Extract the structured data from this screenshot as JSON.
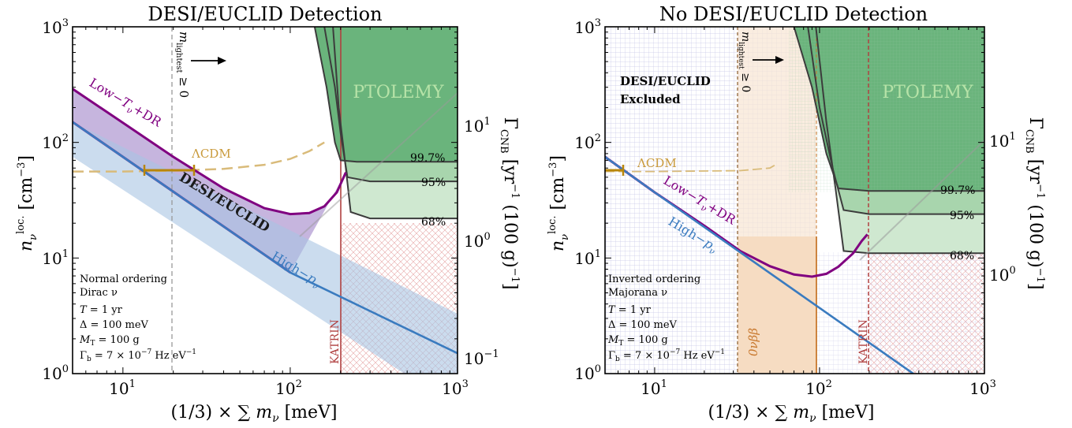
{
  "chart_data": [
    {
      "type": "line",
      "title": "DESI/EUCLID Detection",
      "xlabel": "(1/3) × ∑ m_ν [meV]",
      "ylabel": "n_ν^loc. [cm^-3]",
      "ylabel_right": "Γ_CNB [yr^-1 (100 g)^-1]",
      "xscale": "log",
      "yscale": "log",
      "xlim": [
        5,
        1000
      ],
      "ylim": [
        1,
        1000
      ],
      "x_ticks": [
        "10^1",
        "10^2",
        "10^3"
      ],
      "y_ticks": [
        "10^0",
        "10^1",
        "10^2",
        "10^3"
      ],
      "right_ticks": [
        "10^-1",
        "10^0",
        "10^1"
      ],
      "vertical_lines": [
        {
          "x": 19.5,
          "label": "m_lightest ≥ 0"
        },
        {
          "x": 200,
          "label": "KATRIN"
        }
      ],
      "contour_labels": [
        "99.7%",
        "95%",
        "68%"
      ],
      "annotations": [
        "PTOLEMY",
        "ΛCDM",
        "DESI/EUCLID",
        "Low−T_ν+DR",
        "High−p_ν"
      ],
      "info": [
        "Normal ordering",
        "Dirac ν",
        "T = 1 yr",
        "Δ = 100 meV",
        "M_T = 100 g",
        "Γ_b = 7 × 10^-7 Hz eV^-1"
      ],
      "series": [
        {
          "name": "Low−T_ν+DR",
          "color": "#800080",
          "x": [
            5,
            10,
            20,
            40,
            70,
            100,
            130,
            160,
            190,
            215
          ],
          "y": [
            290,
            148,
            75,
            40,
            27,
            24,
            24.5,
            28,
            37,
            55
          ]
        },
        {
          "name": "High−p_ν",
          "color": "#3a7bbf",
          "x": [
            5,
            10,
            100,
            1000
          ],
          "y": [
            150,
            75,
            7.5,
            1.5
          ]
        },
        {
          "name": "ΛCDM",
          "color": "#d4b16a",
          "x": [
            5,
            10,
            20,
            40,
            70,
            100,
            130,
            160
          ],
          "y": [
            56,
            56,
            57,
            59,
            64,
            72,
            84,
            100
          ]
        },
        {
          "name": "Band lower",
          "color": "#800080",
          "x": [
            5,
            10,
            100
          ],
          "y": [
            150,
            75,
            7.5
          ]
        }
      ],
      "contours": [
        {
          "name": "99.7%",
          "x": [
            140,
            165,
            185,
            200,
            250,
            400,
            700,
            1000
          ],
          "y": [
            1000,
            300,
            100,
            70,
            68,
            68,
            68,
            68
          ]
        },
        {
          "name": "95%",
          "x": [
            160,
            185,
            200,
            220,
            300,
            500,
            1000
          ],
          "y": [
            1000,
            300,
            120,
            50,
            46,
            46,
            46
          ]
        },
        {
          "name": "68%",
          "x": [
            180,
            195,
            210,
            230,
            300,
            500,
            1000
          ],
          "y": [
            1000,
            200,
            80,
            25,
            22,
            22,
            22
          ]
        }
      ],
      "error_bar": {
        "x": [
          13.5,
          26
        ],
        "y": 57
      }
    },
    {
      "type": "line",
      "title": "No DESI/EUCLID Detection",
      "xlabel": "(1/3) × ∑ m_ν [meV]",
      "ylabel": "n_ν^loc. [cm^-3]",
      "ylabel_right": "Γ_CNB [yr^-1 (100 g)^-1]",
      "xscale": "log",
      "yscale": "log",
      "xlim": [
        5,
        1000
      ],
      "ylim": [
        1,
        1000
      ],
      "x_ticks": [
        "10^1",
        "10^2",
        "10^3"
      ],
      "y_ticks": [
        "10^0",
        "10^1",
        "10^2",
        "10^3"
      ],
      "right_ticks": [
        "10^0",
        "10^1"
      ],
      "vertical_lines": [
        {
          "x": 33,
          "label": "m_lightest ≥ 0"
        },
        {
          "x": 130,
          "label": "0νββ"
        },
        {
          "x": 200,
          "label": "KATRIN"
        }
      ],
      "contour_labels": [
        "99.7%",
        "95%",
        "68%"
      ],
      "annotations": [
        "PTOLEMY",
        "ΛCDM",
        "DESI/EUCLID",
        "Excluded",
        "Low−T_ν+DR",
        "High−p_ν"
      ],
      "info": [
        "Inverted ordering",
        "Majorana ν",
        "T = 1 yr",
        "Δ = 100 meV",
        "M_T = 100 g",
        "Γ_b = 7 × 10^-7 Hz eV^-1"
      ],
      "series": [
        {
          "name": "Low−T_ν+DR",
          "color": "#800080",
          "x": [
            5,
            10,
            20,
            33,
            50,
            70,
            90,
            110,
            130,
            160,
            180,
            195
          ],
          "y": [
            75,
            37,
            19,
            11.5,
            8.5,
            7.2,
            6.9,
            7.3,
            8.4,
            11,
            14,
            16
          ]
        },
        {
          "name": "High−p_ν",
          "color": "#3a7bbf",
          "x": [
            5,
            10,
            100,
            370
          ],
          "y": [
            75,
            37,
            3.7,
            1
          ]
        },
        {
          "name": "ΛCDM",
          "color": "#d4b16a",
          "x": [
            5,
            10,
            33,
            50,
            55
          ],
          "y": [
            56,
            56,
            57,
            60,
            65
          ]
        }
      ],
      "contours": [
        {
          "name": "99.7%",
          "x": [
            70,
            90,
            110,
            130,
            200,
            400,
            1000
          ],
          "y": [
            1000,
            300,
            80,
            40,
            38,
            38,
            38
          ]
        },
        {
          "name": "95%",
          "x": [
            85,
            100,
            120,
            140,
            200,
            400,
            1000
          ],
          "y": [
            1000,
            200,
            60,
            26,
            24,
            24,
            24
          ]
        },
        {
          "name": "68%",
          "x": [
            95,
            110,
            125,
            140,
            200,
            400,
            1000
          ],
          "y": [
            1000,
            150,
            40,
            11.5,
            11,
            11,
            11
          ]
        }
      ],
      "error_bar": {
        "x": [
          5,
          6.6
        ],
        "y": 57
      }
    }
  ],
  "ui": {
    "left_title": "DESI/EUCLID Detection",
    "right_title": "No DESI/EUCLID Detection",
    "left_info": [
      "Normal ordering",
      "Dirac ν"
    ],
    "right_info": [
      "Inverted ordering",
      "Majorana ν"
    ],
    "excluded_label_1": "DESI/EUCLID",
    "excluded_label_2": "Excluded",
    "ptolemy": "PTOLEMY",
    "lcdm": "ΛCDM",
    "desi_band": "DESI/EUCLID",
    "katrin": "KATRIN",
    "zero_nu": "0νββ",
    "pct_997": "99.7%",
    "pct_95": "95%",
    "pct_68": "68%"
  }
}
